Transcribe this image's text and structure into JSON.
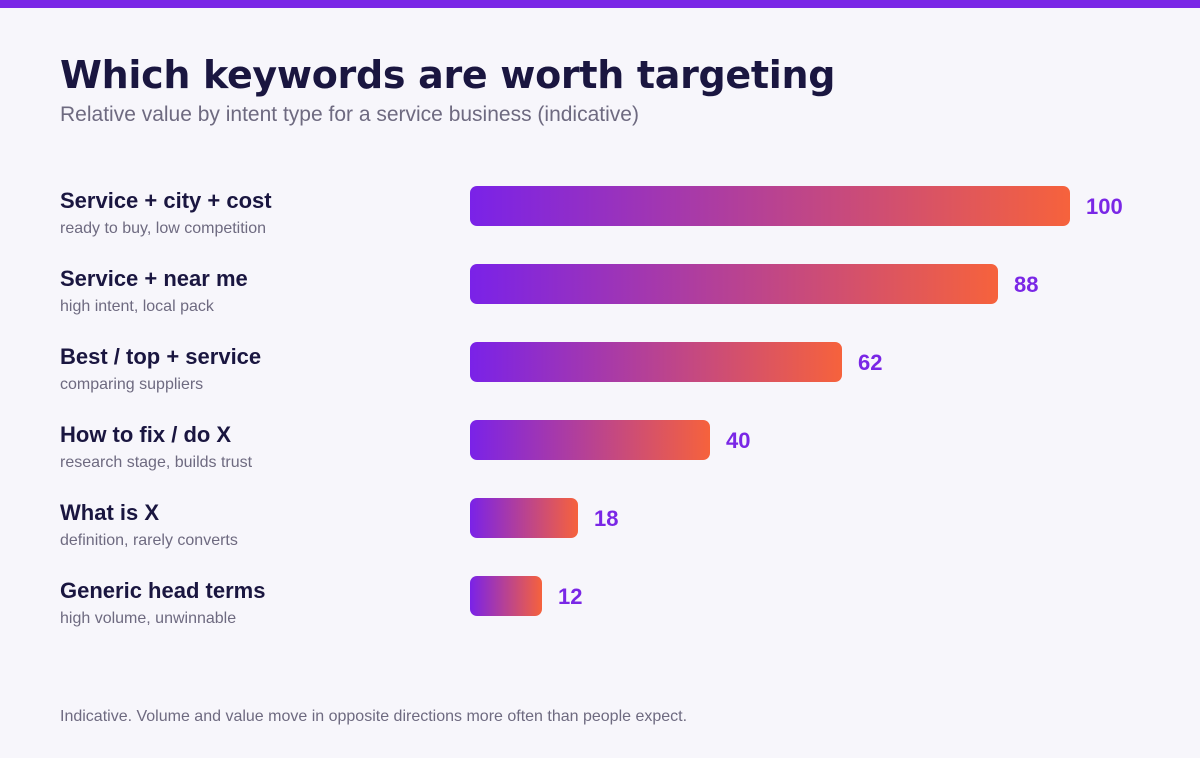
{
  "header": {
    "title": "Which keywords are worth targeting",
    "subtitle": "Relative value by intent type for a service business (indicative)"
  },
  "footnote": "Indicative. Volume and value move in opposite directions more often than people expect.",
  "colors": {
    "accent": "#7a27e6",
    "gradient_start": "#7a22e8",
    "gradient_end": "#f6623c",
    "title": "#1a1640",
    "muted": "#6e6a80",
    "background": "#f7f6fb"
  },
  "chart_data": {
    "type": "bar",
    "orientation": "horizontal",
    "title": "Which keywords are worth targeting",
    "subtitle": "Relative value by intent type for a service business (indicative)",
    "xlim": [
      0,
      100
    ],
    "grid": false,
    "categories": [
      "Service + city + cost",
      "Service + near me",
      "Best / top + service",
      "How to fix / do X",
      "What is X",
      "Generic head terms"
    ],
    "notes": [
      "ready to buy, low competition",
      "high intent, local pack",
      "comparing suppliers",
      "research stage, builds trust",
      "definition, rarely converts",
      "high volume, unwinnable"
    ],
    "values": [
      100,
      88,
      62,
      40,
      18,
      12
    ]
  }
}
